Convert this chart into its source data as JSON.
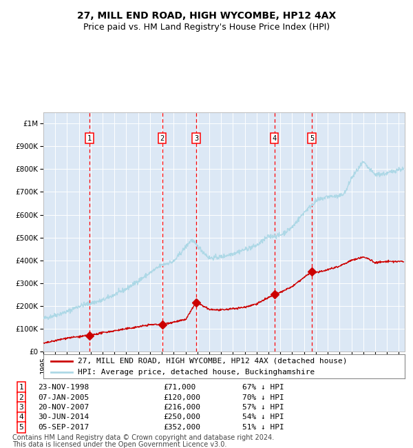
{
  "title": "27, MILL END ROAD, HIGH WYCOMBE, HP12 4AX",
  "subtitle": "Price paid vs. HM Land Registry's House Price Index (HPI)",
  "hpi_label": "HPI: Average price, detached house, Buckinghamshire",
  "price_label": "27, MILL END ROAD, HIGH WYCOMBE, HP12 4AX (detached house)",
  "footer1": "Contains HM Land Registry data © Crown copyright and database right 2024.",
  "footer2": "This data is licensed under the Open Government Licence v3.0.",
  "sales": [
    {
      "num": 1,
      "date": "23-NOV-1998",
      "year": 1998.9,
      "price": 71000,
      "pct": "67% ↓ HPI"
    },
    {
      "num": 2,
      "date": "07-JAN-2005",
      "year": 2005.03,
      "price": 120000,
      "pct": "70% ↓ HPI"
    },
    {
      "num": 3,
      "date": "20-NOV-2007",
      "year": 2007.9,
      "price": 216000,
      "pct": "57% ↓ HPI"
    },
    {
      "num": 4,
      "date": "30-JUN-2014",
      "year": 2014.5,
      "price": 250000,
      "pct": "54% ↓ HPI"
    },
    {
      "num": 5,
      "date": "05-SEP-2017",
      "year": 2017.67,
      "price": 352000,
      "pct": "51% ↓ HPI"
    }
  ],
  "ylim": [
    0,
    1050000
  ],
  "xlim_start": 1995.0,
  "xlim_end": 2025.5,
  "hpi_color": "#add8e6",
  "price_color": "#cc0000",
  "plot_bg": "#dce8f5",
  "grid_color": "#ffffff",
  "vline_color": "#ff0000",
  "title_fontsize": 10,
  "subtitle_fontsize": 9,
  "tick_fontsize": 7.5,
  "legend_fontsize": 8,
  "table_fontsize": 8,
  "footer_fontsize": 7
}
